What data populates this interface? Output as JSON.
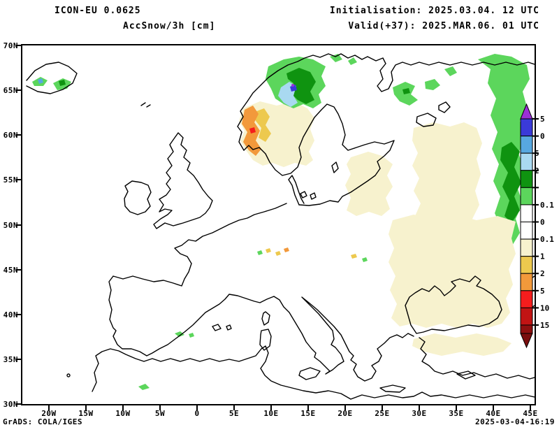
{
  "header": {
    "model": "ICON-EU 0.0625",
    "product": "AccSnow/3h [cm]",
    "init": "Initialisation: 2025.03.04. 12 UTC",
    "valid": "Valid(+37): 2025.MAR.06. 01 UTC"
  },
  "footer": {
    "left": "GrADS: COLA/IGES",
    "right": "2025-03-04-16:19"
  },
  "map": {
    "y_axis": {
      "labels": [
        "70N",
        "65N",
        "60N",
        "55N",
        "50N",
        "45N",
        "40N",
        "35N",
        "30N"
      ]
    },
    "x_axis": {
      "labels": [
        "20W",
        "15W",
        "10W",
        "5W",
        "0",
        "5E",
        "10E",
        "15E",
        "20E",
        "25E",
        "30E",
        "35E",
        "40E",
        "45E"
      ]
    }
  },
  "colors": {
    "purple": "#9B30D6",
    "indigo": "#3A3AD8",
    "sky": "#57A8E0",
    "lightblue": "#A9D9F1",
    "darkgreen": "#0F9310",
    "green": "#5CD65C",
    "white": "#FFFFFF",
    "cream": "#F7F2CE",
    "khaki": "#EDC94E",
    "orange": "#F2993B",
    "red": "#F51D1D",
    "darkred": "#C21414",
    "maroon": "#8F1010",
    "arrow_bottom": "#7A0E0E",
    "coast": "#000000"
  },
  "colorbar": {
    "unit": "cm",
    "arrow_top_color_key": "purple",
    "arrow_bottom_color_key": "arrow_bottom",
    "segment_color_keys": [
      "indigo",
      "sky",
      "lightblue",
      "darkgreen",
      "green",
      "white",
      "white",
      "cream",
      "khaki",
      "orange",
      "red",
      "darkred"
    ],
    "tail_color_key": "maroon",
    "boundary_labels": [
      "5",
      "0",
      "5",
      "2",
      "",
      "0.1",
      "0",
      "0.1",
      "1",
      "2",
      "5",
      "10",
      "15"
    ]
  },
  "chart_data": {
    "type": "heatmap",
    "title": "ICON-EU 0.0625 — AccSnow/3h [cm]",
    "initialisation": "2025.03.04. 12 UTC",
    "valid": "+37h -> 2025.MAR.06. 01 UTC",
    "region": {
      "lat_ticks": [
        "30N",
        "35N",
        "40N",
        "45N",
        "50N",
        "55N",
        "60N",
        "65N",
        "70N"
      ],
      "lon_ticks": [
        "20W",
        "15W",
        "10W",
        "5W",
        "0",
        "5E",
        "10E",
        "15E",
        "20E",
        "25E",
        "30E",
        "35E",
        "40E",
        "45E"
      ]
    },
    "legend": {
      "position": "right-vertical",
      "displayed_labels_top_to_bottom": [
        "5",
        "0",
        "5",
        "2",
        "",
        "0.1",
        "0",
        "0.1",
        "1",
        "2",
        "5",
        "10",
        "15"
      ],
      "colors_top_to_bottom": [
        "#9B30D6",
        "#3A3AD8",
        "#57A8E0",
        "#A9D9F1",
        "#0F9310",
        "#5CD65C",
        "#FFFFFF",
        "#FFFFFF",
        "#F7F2CE",
        "#EDC94E",
        "#F2993B",
        "#F51D1D",
        "#C21414",
        "#8F1010",
        "#7A0E0E"
      ]
    },
    "features": [
      {
        "area": "western/southern Norway coast",
        "color_class": "orange with red speck, khaki patches on cream",
        "meaning": "warm-color end of scale (1-10)"
      },
      {
        "area": "central Norway / Trondelag",
        "color_class": "light green, dark green core, light-blue and indigo patches",
        "meaning": "cool-color end of scale (0.1-5+)"
      },
      {
        "area": "northern Norway coast",
        "color_class": "small green patches"
      },
      {
        "area": "southern Sweden / Baltic",
        "color_class": "pale cream shading"
      },
      {
        "area": "Finland / NW Russia",
        "color_class": "scattered green patches with dark-green specks"
      },
      {
        "area": "eastern map edge (Russia, ~38E-45E) north-south band",
        "color_class": "light green band with dark green core"
      },
      {
        "area": "eastern / south-eastern Europe, Balkans, Turkey",
        "color_class": "widespread pale yellow (trace values)"
      },
      {
        "area": "Iceland",
        "color_class": "small green patches with dark green and pale blue specks"
      },
      {
        "area": "Alps, Carpathians",
        "color_class": "tiny gold/orange and green specks"
      },
      {
        "area": "Pyrenees, southern Spain",
        "color_class": "tiny green specks"
      }
    ]
  }
}
